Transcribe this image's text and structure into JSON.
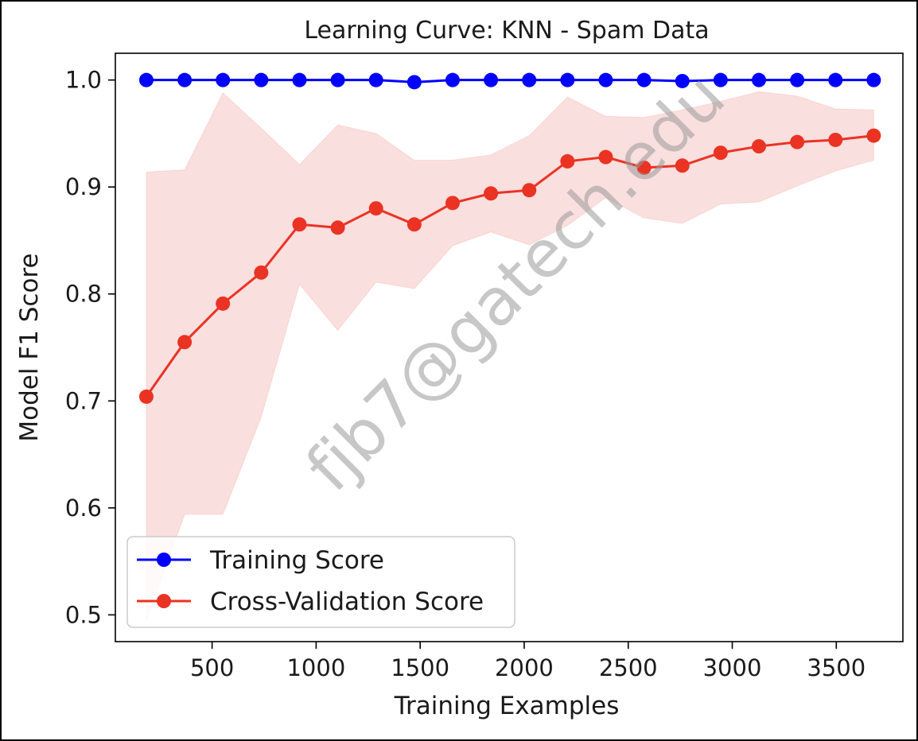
{
  "chart_data": {
    "type": "line",
    "title": "Learning Curve: KNN - Spam Data",
    "xlabel": "Training Examples",
    "ylabel": "Model F1 Score",
    "xlim": [
      35,
      3820
    ],
    "ylim": [
      0.475,
      1.025
    ],
    "xticks": [
      500,
      1000,
      1500,
      2000,
      2500,
      3000,
      3500
    ],
    "yticks": [
      0.5,
      0.6,
      0.7,
      0.8,
      0.9,
      1.0
    ],
    "ytick_labels": [
      "0.5",
      "0.6",
      "0.7",
      "0.8",
      "0.9",
      "1.0"
    ],
    "grid": false,
    "legend_position": "lower-left",
    "x": [
      184,
      368,
      552,
      736,
      920,
      1104,
      1288,
      1472,
      1656,
      1840,
      2024,
      2208,
      2392,
      2576,
      2760,
      2944,
      3128,
      3312,
      3496,
      3680
    ],
    "series": [
      {
        "name": "Training Score",
        "color": "#0000ff",
        "marker": "circle",
        "values": [
          1.0,
          1.0,
          1.0,
          1.0,
          1.0,
          1.0,
          1.0,
          0.998,
          1.0,
          1.0,
          1.0,
          1.0,
          1.0,
          1.0,
          0.999,
          1.0,
          1.0,
          1.0,
          1.0,
          1.0
        ]
      },
      {
        "name": "Cross-Validation Score",
        "color": "#ea3323",
        "marker": "circle",
        "values": [
          0.704,
          0.755,
          0.791,
          0.82,
          0.865,
          0.862,
          0.88,
          0.865,
          0.885,
          0.894,
          0.897,
          0.924,
          0.928,
          0.918,
          0.92,
          0.932,
          0.938,
          0.942,
          0.944,
          0.948
        ],
        "band_color": "#f6caca",
        "band_upper": [
          0.914,
          0.916,
          0.988,
          0.955,
          0.921,
          0.958,
          0.95,
          0.925,
          0.925,
          0.93,
          0.948,
          0.984,
          0.966,
          0.965,
          0.972,
          0.98,
          0.989,
          0.985,
          0.973,
          0.972
        ],
        "band_lower": [
          0.494,
          0.594,
          0.594,
          0.685,
          0.809,
          0.766,
          0.811,
          0.805,
          0.845,
          0.858,
          0.846,
          0.864,
          0.89,
          0.871,
          0.866,
          0.884,
          0.886,
          0.901,
          0.915,
          0.925
        ]
      }
    ]
  },
  "watermark": "fjb7@gatech.edu"
}
